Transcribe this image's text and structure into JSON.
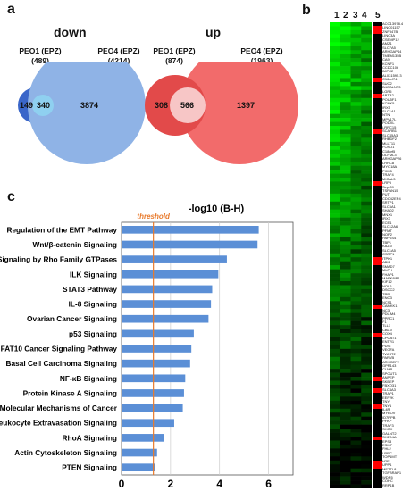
{
  "panels": {
    "a": "a",
    "b": "b",
    "c": "c"
  },
  "venn": {
    "down": {
      "title": "down",
      "set1": {
        "name": "PEO1 (EPZ)",
        "count": "(489)"
      },
      "set2": {
        "name": "PEO4 (EPZ)",
        "count": "(4214)"
      },
      "only1": "149",
      "overlap": "340",
      "only2": "3874",
      "colors": {
        "set1": "#3a66c9",
        "overlap": "#8fd0f0",
        "set2": "#8fb3e6"
      }
    },
    "up": {
      "title": "up",
      "set1": {
        "name": "PEO1 (EPZ)",
        "count": "(874)"
      },
      "set2": {
        "name": "PEO4 (EPZ)",
        "count": "(1963)"
      },
      "only1": "308",
      "overlap": "566",
      "only2": "1397",
      "colors": {
        "set1": "#e24a4a",
        "overlap": "#f7c6c6",
        "set2": "#f26b6b"
      }
    }
  },
  "heatmap": {
    "columns": [
      "1",
      "2",
      "3",
      "4",
      "5"
    ],
    "genes": [
      "ACO13978.4",
      "LINC01157",
      "ZNF847B",
      "LINC3A",
      "CSEMP12",
      "AMZ1",
      "SLC7A5",
      "ARHGAP44",
      "TMEM135B",
      "CA9",
      "KCNF1",
      "CCDC106",
      "IMPC2",
      "AL031595.3",
      "C16orf74",
      "SUC2",
      "B4GALNT3",
      "LGR5",
      "ABTB2",
      "POU5F1",
      "KCNK5",
      "IRX5",
      "SLC1A1",
      "NTN",
      "MPV17L",
      "PODXL",
      "LRRC15",
      "SCARB1",
      "SLC45A3",
      "RHBDF2",
      "MLLT11",
      "FOXD1",
      "C18orf5",
      "OLFML3",
      "ARHGAP26",
      "LRRC8",
      "MYO18A",
      "PKM5",
      "TRAF4",
      "MICAL3",
      "LRP5",
      "Sep-09",
      "TSPAN15",
      "PUTI",
      "CDC42EP4",
      "SRTP1",
      "SLC6A1",
      "SHA02",
      "MNX1",
      "IRX3",
      "ECE1",
      "SLC12A6",
      "PFMT",
      "NOP2",
      "PAPSS4",
      "TBP1",
      "KAZN",
      "SLC1A5",
      "CSRP1",
      "ITPK1",
      "ABI2",
      "SMAD7",
      "MLPH",
      "FHAP1",
      "MAPK8IP1",
      "KIF12",
      "NOL6",
      "DSCC2",
      "TRP",
      "ENO3",
      "NCS1",
      "CAMKK1",
      "NC3",
      "PDLIM4",
      "PPRC1",
      "F1",
      "TLL1",
      "CBLN",
      "COX4",
      "CPCAT1",
      "ENTR1",
      "PDIC",
      "VEGFA",
      "TWIST2",
      "PARVB",
      "ARHGEF2",
      "GPR143",
      "CLMP",
      "SPOUT1",
      "ANPEP",
      "SKBEP",
      "FBXO31",
      "SLC4A3",
      "TRAP1",
      "EEF2K",
      "TNYI",
      "TNY1",
      "IL4R",
      "MYEOV",
      "ID7RPB",
      "PFKP",
      "TRAF3",
      "SHOX",
      "GALNT2",
      "SH2D4A",
      "EPS8",
      "ESM7",
      "FHL2",
      "LRRC",
      "TOP1MT",
      "H2F",
      "UPP1",
      "METTL8",
      "TGFBRAP1",
      "WDR5",
      "COHC",
      "RRP1B"
    ],
    "red_rows": [
      1,
      2,
      14,
      18,
      27,
      40,
      59,
      60,
      71,
      78,
      89,
      92,
      96,
      104,
      110,
      111
    ],
    "colors": {
      "high": "#00ff00",
      "low": "#000000",
      "flag": "#ff0000"
    }
  },
  "chart_data": {
    "type": "bar",
    "orientation": "horizontal",
    "title": "-log10 (B-H)",
    "categories": [
      "Regulation of the EMT Pathway",
      "Wnt/β-catenin Signaling",
      "Signaling by Rho Family GTPases",
      "ILK Signaling",
      "STAT3 Pathway",
      "IL-8 Signaling",
      "Ovarian Cancer Signaling",
      "p53 Signaling",
      "FAT10 Cancer Signaling Pathway",
      "Basal Cell Carcinoma Signaling",
      "NF-κB Signaling",
      "Protein Kinase A Signaling",
      "Molecular Mechanisms of Cancer",
      "Leukocyte Extravasation Signaling",
      "RhoA Signaling",
      "Actin Cytoskeleton Signaling",
      "PTEN Signaling"
    ],
    "values": [
      5.6,
      5.55,
      4.3,
      3.95,
      3.7,
      3.65,
      3.55,
      2.95,
      2.85,
      2.8,
      2.6,
      2.55,
      2.5,
      2.15,
      1.75,
      1.45,
      1.35
    ],
    "threshold": {
      "label": "threshold",
      "value": 1.3,
      "color": "#e87a2c"
    },
    "xlim": [
      0,
      7
    ],
    "xticks": [
      "0",
      "2",
      "4",
      "6"
    ],
    "grid": true,
    "bar_color": "#5b8fd6"
  }
}
